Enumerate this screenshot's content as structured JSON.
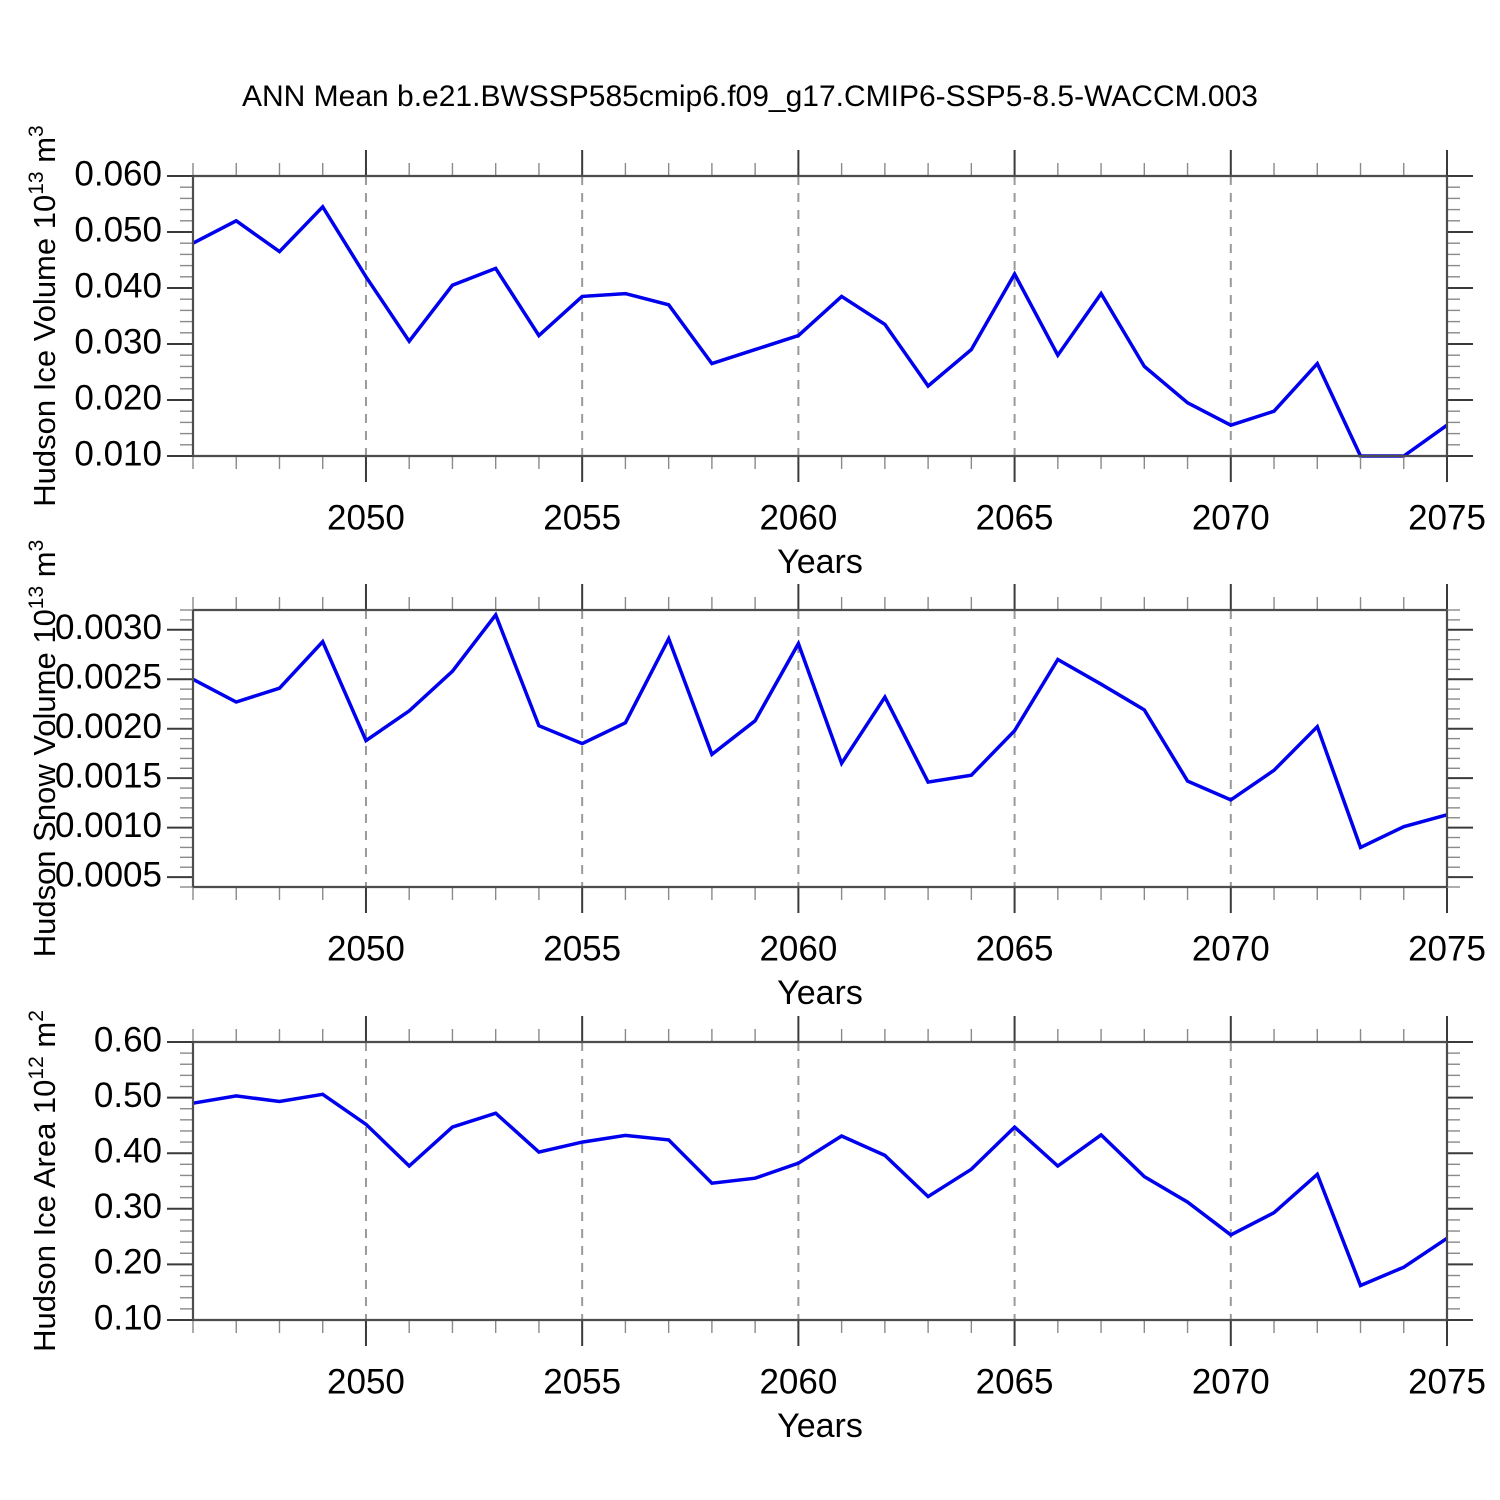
{
  "figure": {
    "title": "ANN Mean b.e21.BWSSP585cmip6.f09_g17.CMIP6-SSP5-8.5-WACCM.003"
  },
  "style": {
    "background": "#ffffff",
    "line_color": "#0000ee",
    "axis_color": "#4d4d4d",
    "major_tick_color": "#3a3a3a",
    "minor_tick_color": "#8a8a8a",
    "grid_color": "#9a9a9a",
    "text_color": "#000000"
  },
  "chart_data": [
    {
      "type": "line",
      "title": "",
      "xlabel": "Years",
      "ylabel_plain": "Hudson Ice Volume 10^13 m^3",
      "ylabel_segments": [
        {
          "t": "Hudson Ice Volume 10"
        },
        {
          "t": "13",
          "sup": true
        },
        {
          "t": " m"
        },
        {
          "t": "3",
          "sup": true
        }
      ],
      "x": [
        2046,
        2047,
        2048,
        2049,
        2050,
        2051,
        2052,
        2053,
        2054,
        2055,
        2056,
        2057,
        2058,
        2059,
        2060,
        2061,
        2062,
        2063,
        2064,
        2065,
        2066,
        2067,
        2068,
        2069,
        2070,
        2071,
        2072,
        2073,
        2074,
        2075
      ],
      "values": [
        0.048,
        0.052,
        0.0465,
        0.0545,
        0.042,
        0.0305,
        0.0405,
        0.0435,
        0.0315,
        0.0385,
        0.039,
        0.037,
        0.0265,
        0.029,
        0.0315,
        0.0385,
        0.0335,
        0.0225,
        0.029,
        0.0425,
        0.028,
        0.039,
        0.026,
        0.0195,
        0.0155,
        0.018,
        0.0265,
        0.01,
        0.01,
        0.0155
      ],
      "xlim": [
        2046,
        2075
      ],
      "ylim": [
        0.01,
        0.06
      ],
      "yticks": [
        0.01,
        0.02,
        0.03,
        0.04,
        0.05,
        0.06
      ],
      "ytick_labels": [
        "0.010",
        "0.020",
        "0.030",
        "0.040",
        "0.050",
        "0.060"
      ],
      "y_minor_step": 0.002,
      "xticks": [
        2050,
        2055,
        2060,
        2065,
        2070,
        2075
      ],
      "xtick_labels": [
        "2050",
        "2055",
        "2060",
        "2065",
        "2070",
        "2075"
      ],
      "x_minor_step": 1,
      "grid_x": [
        2050,
        2055,
        2060,
        2065,
        2070
      ],
      "grid_on": true,
      "legend": "none"
    },
    {
      "type": "line",
      "title": "",
      "xlabel": "Years",
      "ylabel_plain": "Hudson Snow Volume 10^13 m^3",
      "ylabel_segments": [
        {
          "t": "Hudson Snow Volume 10"
        },
        {
          "t": "13",
          "sup": true
        },
        {
          "t": " m"
        },
        {
          "t": "3",
          "sup": true
        }
      ],
      "x": [
        2046,
        2047,
        2048,
        2049,
        2050,
        2051,
        2052,
        2053,
        2054,
        2055,
        2056,
        2057,
        2058,
        2059,
        2060,
        2061,
        2062,
        2063,
        2064,
        2065,
        2066,
        2067,
        2068,
        2069,
        2070,
        2071,
        2072,
        2073,
        2074,
        2075
      ],
      "values": [
        0.0025,
        0.00227,
        0.00241,
        0.00288,
        0.00188,
        0.00218,
        0.00258,
        0.00315,
        0.00203,
        0.00185,
        0.00206,
        0.00291,
        0.00174,
        0.00208,
        0.00286,
        0.00165,
        0.00232,
        0.00146,
        0.00153,
        0.00198,
        0.0027,
        0.00245,
        0.00219,
        0.00147,
        0.00128,
        0.00158,
        0.00202,
        0.0008,
        0.00101,
        0.00113
      ],
      "xlim": [
        2046,
        2075
      ],
      "ylim": [
        0.0004,
        0.0032
      ],
      "yticks": [
        0.0005,
        0.001,
        0.0015,
        0.002,
        0.0025,
        0.003
      ],
      "ytick_labels": [
        "0.0005",
        "0.0010",
        "0.0015",
        "0.0020",
        "0.0025",
        "0.0030"
      ],
      "y_minor_step": 0.0001,
      "xticks": [
        2050,
        2055,
        2060,
        2065,
        2070,
        2075
      ],
      "xtick_labels": [
        "2050",
        "2055",
        "2060",
        "2065",
        "2070",
        "2075"
      ],
      "x_minor_step": 1,
      "grid_x": [
        2050,
        2055,
        2060,
        2065,
        2070
      ],
      "grid_on": true,
      "legend": "none"
    },
    {
      "type": "line",
      "title": "",
      "xlabel": "Years",
      "ylabel_plain": "Hudson Ice Area 10^12 m^2",
      "ylabel_segments": [
        {
          "t": "Hudson Ice Area 10"
        },
        {
          "t": "12",
          "sup": true
        },
        {
          "t": " m"
        },
        {
          "t": "2",
          "sup": true
        }
      ],
      "x": [
        2046,
        2047,
        2048,
        2049,
        2050,
        2051,
        2052,
        2053,
        2054,
        2055,
        2056,
        2057,
        2058,
        2059,
        2060,
        2061,
        2062,
        2063,
        2064,
        2065,
        2066,
        2067,
        2068,
        2069,
        2070,
        2071,
        2072,
        2073,
        2074,
        2075
      ],
      "values": [
        0.49,
        0.503,
        0.493,
        0.506,
        0.452,
        0.377,
        0.447,
        0.472,
        0.402,
        0.42,
        0.432,
        0.424,
        0.346,
        0.355,
        0.382,
        0.431,
        0.396,
        0.322,
        0.371,
        0.447,
        0.377,
        0.433,
        0.358,
        0.312,
        0.253,
        0.293,
        0.362,
        0.162,
        0.195,
        0.247
      ],
      "xlim": [
        2046,
        2075
      ],
      "ylim": [
        0.1,
        0.6
      ],
      "yticks": [
        0.1,
        0.2,
        0.3,
        0.4,
        0.5,
        0.6
      ],
      "ytick_labels": [
        "0.10",
        "0.20",
        "0.30",
        "0.40",
        "0.50",
        "0.60"
      ],
      "y_minor_step": 0.02,
      "xticks": [
        2050,
        2055,
        2060,
        2065,
        2070,
        2075
      ],
      "xtick_labels": [
        "2050",
        "2055",
        "2060",
        "2065",
        "2070",
        "2075"
      ],
      "x_minor_step": 1,
      "grid_x": [
        2050,
        2055,
        2060,
        2065,
        2070
      ],
      "grid_on": true,
      "legend": "none"
    }
  ]
}
